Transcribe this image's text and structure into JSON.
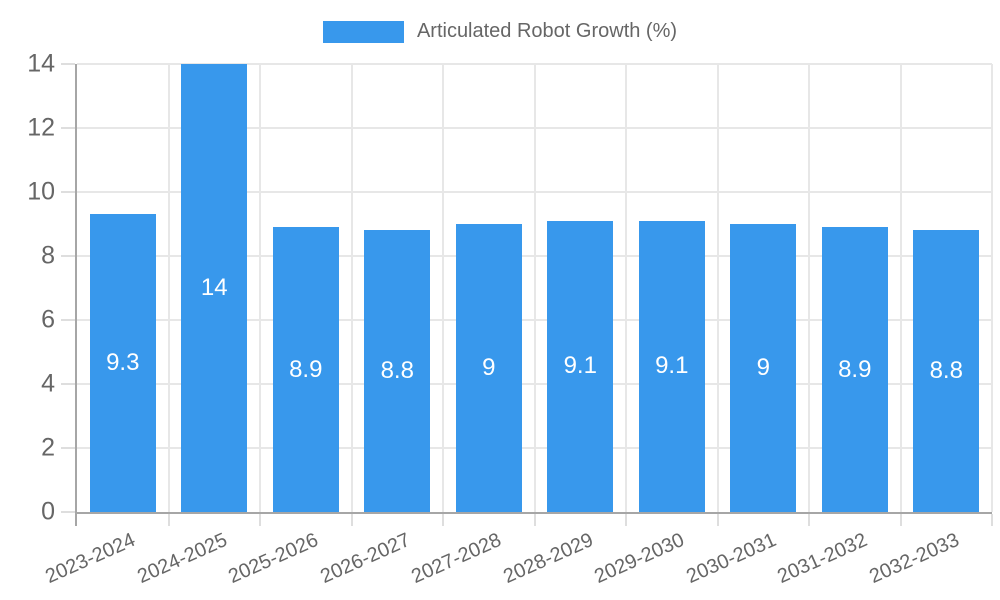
{
  "legend": {
    "items": [
      {
        "label": "Articulated Robot Growth (%)",
        "color": "#3898ec"
      }
    ]
  },
  "chart_data": {
    "type": "bar",
    "title": "",
    "xlabel": "",
    "ylabel": "",
    "categories": [
      "2023-2024",
      "2024-2025",
      "2025-2026",
      "2026-2027",
      "2027-2028",
      "2028-2029",
      "2029-2030",
      "2030-2031",
      "2031-2032",
      "2032-2033"
    ],
    "series": [
      {
        "name": "Articulated Robot Growth (%)",
        "color": "#3898ec",
        "values": [
          9.3,
          14,
          8.9,
          8.8,
          9,
          9.1,
          9.1,
          9,
          8.9,
          8.8
        ],
        "data_labels": [
          "9.3",
          "14",
          "8.9",
          "8.8",
          "9",
          "9.1",
          "9.1",
          "9",
          "8.9",
          "8.8"
        ]
      }
    ],
    "ylim": [
      0,
      14
    ],
    "yticks": [
      0,
      2,
      4,
      6,
      8,
      10,
      12,
      14
    ],
    "grid": true,
    "legend_position": "top",
    "axis_color": "#a6a6a6",
    "grid_color": "#e7e7e7",
    "tick_label_color": "#666666",
    "value_label_color": "#ffffff"
  }
}
